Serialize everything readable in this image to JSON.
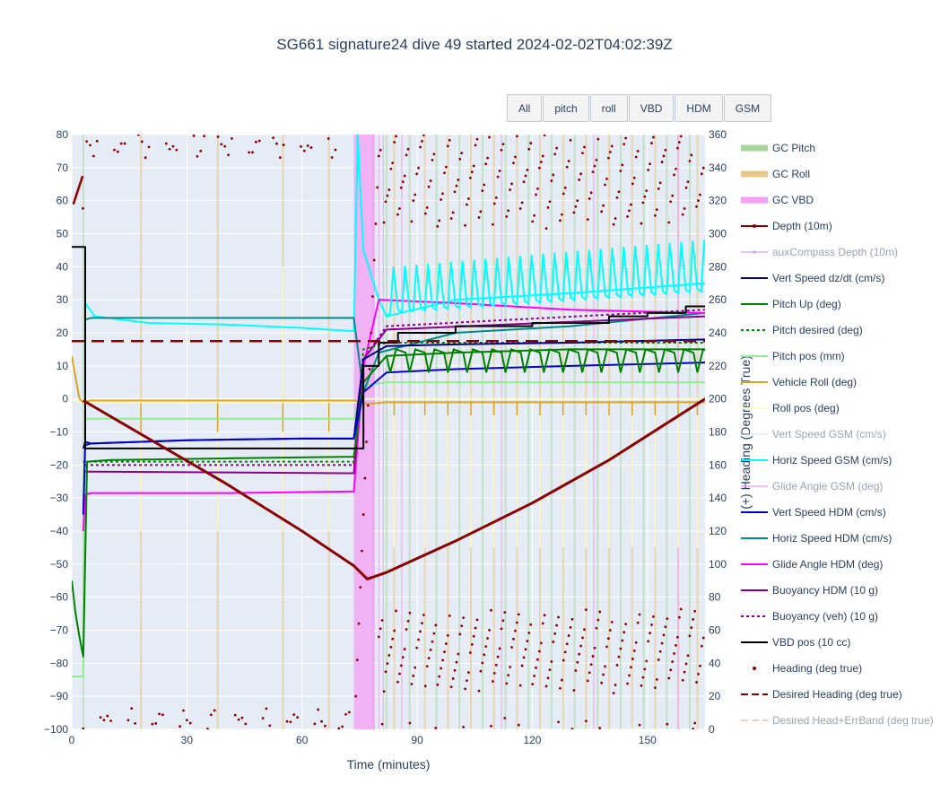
{
  "title": "SG661 signature24 dive 49 started 2024-02-02T04:02:39Z",
  "buttons": [
    {
      "label": "All"
    },
    {
      "label": "pitch"
    },
    {
      "label": "roll"
    },
    {
      "label": "VBD"
    },
    {
      "label": "HDM"
    },
    {
      "label": "GSM"
    }
  ],
  "chart_data": {
    "type": "line",
    "title": "SG661 signature24 dive 49 started 2024-02-02T04:02:39Z",
    "xlabel": "Time (minutes)",
    "ylabel": "",
    "y2label": "(+) Heading (Degrees True)",
    "xlim": [
      0,
      165
    ],
    "ylim": [
      -100,
      80
    ],
    "y2lim": [
      0,
      360
    ],
    "x_ticks": [
      0,
      30,
      60,
      90,
      120,
      150
    ],
    "y_ticks": [
      80,
      70,
      60,
      50,
      40,
      30,
      20,
      10,
      0,
      -10,
      -20,
      -30,
      -40,
      -50,
      -60,
      -70,
      -80,
      -90,
      -100
    ],
    "y2_ticks": [
      360,
      340,
      320,
      300,
      280,
      260,
      240,
      220,
      200,
      180,
      160,
      140,
      120,
      100,
      80,
      60,
      40,
      20,
      0
    ],
    "grid": true,
    "legend_position": "right",
    "gc_vbd_band": [
      73.5,
      79
    ],
    "gc_roll_times": [
      18,
      38,
      55,
      67,
      84,
      92,
      98,
      104,
      110,
      116,
      122,
      128,
      134,
      140,
      146,
      152,
      158,
      163
    ],
    "gc_pitch_times": [
      3,
      82,
      88,
      95,
      101,
      107,
      113,
      119,
      125,
      131,
      137,
      143,
      149,
      155,
      161
    ],
    "series": [
      {
        "name": "GC Pitch",
        "color": "#a9d59c",
        "style": "band"
      },
      {
        "name": "GC Roll",
        "color": "#e8c98a",
        "style": "band"
      },
      {
        "name": "GC VBD",
        "color": "#f49ef4",
        "style": "band"
      },
      {
        "name": "Depth (10m)",
        "color": "#8b0000",
        "style": "line-marker",
        "x": [
          3,
          20,
          40,
          60,
          73.5,
          77,
          82,
          100,
          120,
          140,
          165
        ],
        "y": [
          -0.5,
          -12,
          -25.5,
          -40,
          -50.5,
          -54.5,
          -52.5,
          -43,
          -31.5,
          -18.5,
          0
        ]
      },
      {
        "name": "auxCompass Depth (10m)",
        "color": "#c88fe0",
        "style": "line-marker",
        "visible": false
      },
      {
        "name": "Vert Speed dz/dt (cm/s)",
        "color": "#00008b",
        "style": "line",
        "x": [
          3,
          3.5,
          5,
          30,
          60,
          73.5,
          76,
          82,
          100,
          130,
          165
        ],
        "y": [
          -15,
          -13,
          -13.5,
          -12.5,
          -12,
          -12,
          12,
          16,
          16.5,
          17,
          18
        ]
      },
      {
        "name": "Pitch Up (deg)",
        "color": "#008000",
        "style": "line",
        "x": [
          0,
          1,
          2,
          3,
          4,
          10,
          40,
          73.5,
          76,
          82,
          100,
          130,
          165
        ],
        "y": [
          -55,
          -65,
          -72,
          -78,
          -19,
          -18.5,
          -18,
          -17.5,
          5,
          13,
          14,
          15,
          15
        ]
      },
      {
        "name": "Pitch desired (deg)",
        "color": "#008000",
        "style": "dotted",
        "x": [
          3,
          73.5,
          76,
          82,
          165
        ],
        "y": [
          -19,
          -19,
          15,
          17,
          17
        ]
      },
      {
        "name": "Pitch pos (mm)",
        "color": "#90ee90",
        "style": "line",
        "x": [
          0,
          3,
          3.5,
          73.5,
          76,
          82,
          165
        ],
        "y": [
          -84,
          -84,
          -6,
          -6,
          4,
          5,
          5
        ]
      },
      {
        "name": "Vehicle Roll (deg)",
        "color": "#daa520",
        "style": "line",
        "x": [
          0,
          2,
          3,
          5,
          73.5,
          77,
          82,
          165
        ],
        "y": [
          13,
          0,
          -1,
          -0.5,
          -0.5,
          -1.5,
          -1,
          -1
        ]
      },
      {
        "name": "Roll pos (deg)",
        "color": "#fffacd",
        "style": "line",
        "x": [
          0,
          3,
          73.5,
          77,
          165
        ],
        "y": [
          0,
          -1,
          -1,
          0,
          0
        ]
      },
      {
        "name": "Vert Speed GSM (cm/s)",
        "color": "#d6e2f5",
        "style": "line",
        "visible": false
      },
      {
        "name": "Horiz Speed GSM (cm/s)",
        "color": "#00ffff",
        "style": "line",
        "x": [
          3.5,
          6,
          20,
          40,
          60,
          73.5,
          74.5,
          76,
          80,
          82,
          100,
          130,
          165
        ],
        "y": [
          29,
          25,
          23,
          22.5,
          21.5,
          20.5,
          80,
          45,
          30,
          25,
          30,
          32,
          35
        ]
      },
      {
        "name": "Glide Angle GSM (deg)",
        "color": "#ee82ee",
        "style": "line",
        "visible": false
      },
      {
        "name": "Vert Speed HDM (cm/s)",
        "color": "#0000cd",
        "style": "line",
        "x": [
          3,
          3.5,
          5,
          30,
          60,
          73.5,
          76,
          82,
          100,
          130,
          165
        ],
        "y": [
          -35,
          -14,
          -13.5,
          -12.5,
          -12,
          -12,
          2,
          8,
          9,
          10,
          11
        ]
      },
      {
        "name": "Horiz Speed HDM (cm/s)",
        "color": "#008b8b",
        "style": "line",
        "x": [
          3.5,
          5,
          73.5,
          76,
          80,
          100,
          130,
          165
        ],
        "y": [
          24,
          24.5,
          24.5,
          2,
          14,
          20,
          22,
          26
        ]
      },
      {
        "name": "Glide Angle HDM (deg)",
        "color": "#ff00ff",
        "style": "line",
        "x": [
          3,
          3.5,
          5,
          40,
          73.5,
          76,
          80,
          100,
          130,
          165
        ],
        "y": [
          -40,
          -29,
          -28.5,
          -28.5,
          -28,
          10,
          30,
          29,
          27,
          26
        ]
      },
      {
        "name": "Buoyancy HDM (10 g)",
        "color": "#8b008b",
        "style": "line",
        "x": [
          3.5,
          5,
          73.5,
          76,
          82,
          165
        ],
        "y": [
          -22,
          -22,
          -22.5,
          12,
          21,
          25
        ]
      },
      {
        "name": "Buoyancy (veh) (10 g)",
        "color": "#8b008b",
        "style": "dotted",
        "x": [
          3.5,
          73.5,
          76,
          82,
          165
        ],
        "y": [
          -20,
          -20,
          12,
          22,
          27
        ]
      },
      {
        "name": "VBD pos (10 cc)",
        "color": "#000000",
        "style": "step",
        "x": [
          0,
          3,
          3.5,
          73.5,
          76,
          80,
          85,
          100,
          120,
          140,
          150,
          160,
          165
        ],
        "y": [
          46,
          46,
          -15,
          -15,
          10,
          17,
          20,
          22,
          23,
          25,
          26,
          28,
          28
        ]
      },
      {
        "name": "Heading (deg true)",
        "color": "#8b0000",
        "style": "markers",
        "axis": "y2"
      },
      {
        "name": "Desired Heading (deg true)",
        "color": "#8b0000",
        "style": "dashed",
        "axis": "y2",
        "value": 235
      },
      {
        "name": "Desired Head+ErrBand (deg true)",
        "color": "#e9a386",
        "style": "dashed",
        "axis": "y2",
        "visible": false
      }
    ]
  }
}
